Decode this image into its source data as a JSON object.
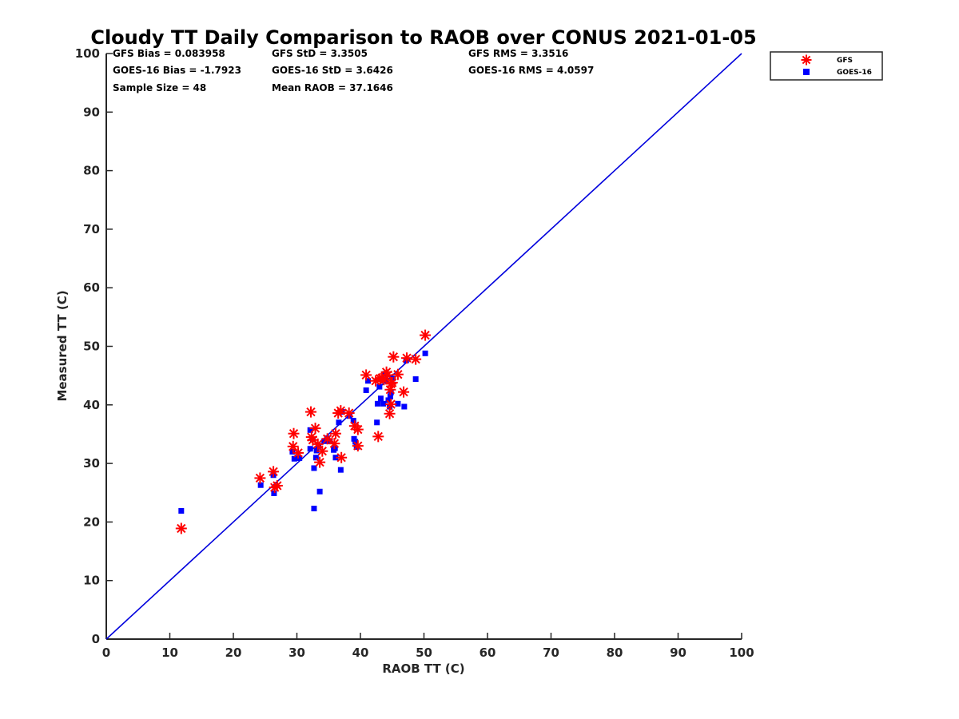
{
  "chart_data": {
    "type": "scatter",
    "title": "Cloudy TT Daily Comparison to RAOB over CONUS 2021-01-05",
    "xlabel": "RAOB TT (C)",
    "ylabel": "Measured TT (C)",
    "xlim": [
      0,
      100
    ],
    "ylim": [
      0,
      100
    ],
    "xticks": [
      "0",
      "10",
      "20",
      "30",
      "40",
      "50",
      "60",
      "70",
      "80",
      "90",
      "100"
    ],
    "yticks": [
      "0",
      "10",
      "20",
      "30",
      "40",
      "50",
      "60",
      "70",
      "80",
      "90",
      "100"
    ],
    "grid": false,
    "legend_position": "outside top-right",
    "reference_line": {
      "label": "1:1",
      "from": [
        0,
        0
      ],
      "to": [
        100,
        100
      ],
      "color": "#0000dd"
    },
    "stats": [
      [
        "GFS Bias = 0.083958",
        "GFS StD = 3.3505",
        "GFS RMS = 3.3516"
      ],
      [
        "GOES-16 Bias = -1.7923",
        "GOES-16 StD = 3.6426",
        "GOES-16 RMS = 4.0597"
      ],
      [
        "Sample Size = 48",
        "Mean RAOB = 37.1646",
        ""
      ]
    ],
    "series": [
      {
        "name": "GFS",
        "marker": "asterisk",
        "color": "#ff0000",
        "points": [
          [
            11.8,
            18.9
          ],
          [
            24.2,
            27.5
          ],
          [
            26.3,
            28.6
          ],
          [
            26.5,
            25.9
          ],
          [
            26.9,
            26.2
          ],
          [
            29.4,
            32.9
          ],
          [
            29.5,
            35.1
          ],
          [
            30.2,
            31.8
          ],
          [
            32.2,
            38.8
          ],
          [
            32.3,
            34.5
          ],
          [
            32.5,
            34.0
          ],
          [
            32.9,
            36.0
          ],
          [
            33.3,
            33.3
          ],
          [
            33.6,
            30.2
          ],
          [
            34.0,
            32.1
          ],
          [
            34.8,
            34.2
          ],
          [
            35.9,
            33.4
          ],
          [
            36.1,
            35.1
          ],
          [
            36.5,
            38.6
          ],
          [
            36.9,
            39.0
          ],
          [
            37.0,
            31.0
          ],
          [
            38.2,
            38.6
          ],
          [
            39.1,
            36.4
          ],
          [
            39.6,
            33.0
          ],
          [
            39.6,
            35.8
          ],
          [
            40.9,
            45.1
          ],
          [
            42.4,
            44.1
          ],
          [
            42.8,
            34.6
          ],
          [
            43.1,
            44.5
          ],
          [
            43.4,
            44.6
          ],
          [
            43.7,
            44.3
          ],
          [
            44.1,
            45.6
          ],
          [
            44.3,
            45.1
          ],
          [
            44.6,
            38.5
          ],
          [
            44.7,
            42.6
          ],
          [
            44.8,
            43.6
          ],
          [
            44.8,
            40.1
          ],
          [
            45.0,
            43.8
          ],
          [
            45.2,
            48.2
          ],
          [
            45.9,
            45.2
          ],
          [
            46.8,
            42.2
          ],
          [
            47.3,
            48.0
          ],
          [
            48.7,
            47.8
          ],
          [
            50.2,
            51.9
          ]
        ]
      },
      {
        "name": "GOES-16",
        "marker": "square",
        "color": "#0000ff",
        "points": [
          [
            11.8,
            21.9
          ],
          [
            24.3,
            26.3
          ],
          [
            26.3,
            28.0
          ],
          [
            26.4,
            24.9
          ],
          [
            29.3,
            32.0
          ],
          [
            29.6,
            30.8
          ],
          [
            30.4,
            30.9
          ],
          [
            32.1,
            35.7
          ],
          [
            32.1,
            32.5
          ],
          [
            32.5,
            34.1
          ],
          [
            32.7,
            29.2
          ],
          [
            32.7,
            22.3
          ],
          [
            33.0,
            31.0
          ],
          [
            33.1,
            32.2
          ],
          [
            33.4,
            33.0
          ],
          [
            33.6,
            25.2
          ],
          [
            34.3,
            33.8
          ],
          [
            34.8,
            34.3
          ],
          [
            35.2,
            33.8
          ],
          [
            35.8,
            32.3
          ],
          [
            36.0,
            32.6
          ],
          [
            36.1,
            31.0
          ],
          [
            36.6,
            37.0
          ],
          [
            36.9,
            28.9
          ],
          [
            37.1,
            38.8
          ],
          [
            38.3,
            38.1
          ],
          [
            38.9,
            37.3
          ],
          [
            39.0,
            34.2
          ],
          [
            39.2,
            33.7
          ],
          [
            39.4,
            32.8
          ],
          [
            40.9,
            42.5
          ],
          [
            41.2,
            44.1
          ],
          [
            42.6,
            37.0
          ],
          [
            42.7,
            40.2
          ],
          [
            43.0,
            43.1
          ],
          [
            43.2,
            41.1
          ],
          [
            43.6,
            40.2
          ],
          [
            43.9,
            45.3
          ],
          [
            44.0,
            44.1
          ],
          [
            44.4,
            40.8
          ],
          [
            44.6,
            39.7
          ],
          [
            44.7,
            41.4
          ],
          [
            44.8,
            42.1
          ],
          [
            45.1,
            44.5
          ],
          [
            45.9,
            40.2
          ],
          [
            46.9,
            39.7
          ],
          [
            48.7,
            44.4
          ],
          [
            50.2,
            48.8
          ],
          [
            47.2,
            47.6
          ]
        ]
      }
    ]
  }
}
